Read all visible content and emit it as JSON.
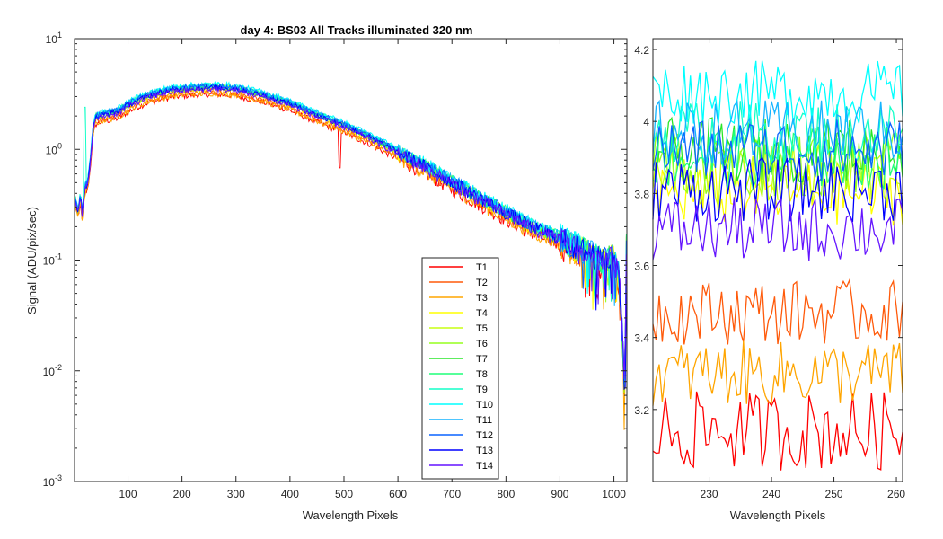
{
  "chart_data": [
    {
      "type": "line",
      "title": "day 4: BS03   All Tracks illuminated   320 nm",
      "xlabel": "Wavelength Pixels",
      "ylabel": "Signal (ADU/pix/sec)",
      "xlim": [
        1,
        1024
      ],
      "ylim": [
        0.001,
        10
      ],
      "yscale": "log",
      "xticks": [
        100,
        200,
        300,
        400,
        500,
        600,
        700,
        800,
        900,
        1000
      ],
      "yticks": [
        {
          "base": "10",
          "exp": "-3"
        },
        {
          "base": "10",
          "exp": "-2"
        },
        {
          "base": "10",
          "exp": "-1"
        },
        {
          "base": "10",
          "exp": "0"
        },
        {
          "base": "10",
          "exp": "1"
        }
      ],
      "legend_position": "lower-center-right",
      "grid": false,
      "series": [
        {
          "name": "T1",
          "color": "#ff0000",
          "scale": 0.86
        },
        {
          "name": "T2",
          "color": "#ff5a0a",
          "scale": 0.92
        },
        {
          "name": "T3",
          "color": "#ffa500",
          "scale": 0.88
        },
        {
          "name": "T4",
          "color": "#ffff00",
          "scale": 0.98
        },
        {
          "name": "T5",
          "color": "#c8ff14",
          "scale": 1.0
        },
        {
          "name": "T6",
          "color": "#96ff1e",
          "scale": 1.0
        },
        {
          "name": "T7",
          "color": "#28e628",
          "scale": 1.01
        },
        {
          "name": "T8",
          "color": "#1eff78",
          "scale": 1.02
        },
        {
          "name": "T9",
          "color": "#14ffc8",
          "scale": 1.03
        },
        {
          "name": "T10",
          "color": "#00ffff",
          "scale": 1.06
        },
        {
          "name": "T11",
          "color": "#14b4ff",
          "scale": 1.03
        },
        {
          "name": "T12",
          "color": "#0a64ff",
          "scale": 1.02
        },
        {
          "name": "T13",
          "color": "#0000ff",
          "scale": 0.99
        },
        {
          "name": "T14",
          "color": "#6414ff",
          "scale": 0.96
        }
      ],
      "profile_anchors": {
        "pixel": [
          1,
          8,
          12,
          15,
          20,
          25,
          30,
          34,
          38,
          40,
          50,
          80,
          110,
          140,
          180,
          220,
          260,
          300,
          350,
          400,
          450,
          500,
          550,
          600,
          650,
          700,
          750,
          800,
          850,
          900,
          950,
          980,
          1000,
          1010,
          1016,
          1020,
          1024
        ],
        "signal": [
          0.38,
          0.27,
          0.4,
          0.26,
          0.45,
          0.5,
          0.75,
          1.35,
          1.8,
          1.95,
          2.05,
          2.2,
          2.7,
          3.1,
          3.45,
          3.6,
          3.65,
          3.55,
          3.1,
          2.6,
          2.05,
          1.65,
          1.28,
          0.95,
          0.71,
          0.51,
          0.37,
          0.27,
          0.2,
          0.16,
          0.12,
          0.1,
          0.11,
          0.07,
          0.02,
          0.006,
          0.4
        ]
      },
      "features": [
        {
          "series": "T1",
          "pixel": 492,
          "signal": 0.68
        },
        {
          "series": "T9",
          "pixel": 20,
          "signal": 2.4
        }
      ]
    },
    {
      "type": "line",
      "xlabel": "Wavelength Pixels",
      "ylabel": "",
      "xlim": [
        221,
        261
      ],
      "ylim": [
        3.0,
        4.23
      ],
      "xticks": [
        230,
        240,
        250,
        260
      ],
      "yticks": [
        "3.2",
        "3.4",
        "3.6",
        "3.8",
        "4",
        "4.2"
      ],
      "yvalues": [
        3.2,
        3.4,
        3.6,
        3.8,
        4.0,
        4.2
      ],
      "series_means": {
        "T1": 3.14,
        "T2": 3.47,
        "T3": 3.3,
        "T4": 3.8,
        "T5": 3.85,
        "T6": 3.88,
        "T7": 3.92,
        "T8": 3.9,
        "T9": 3.97,
        "T10": 4.08,
        "T11": 3.97,
        "T12": 3.92,
        "T13": 3.81,
        "T14": 3.7
      }
    }
  ]
}
